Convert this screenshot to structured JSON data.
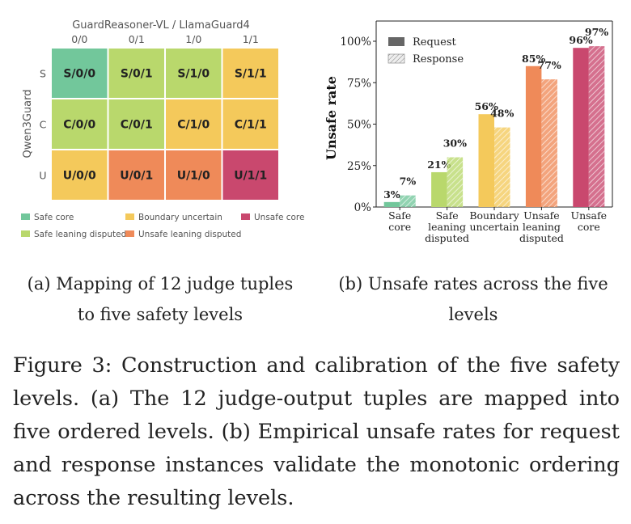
{
  "chart_data": [
    {
      "type": "heatmap",
      "xlabel": "GuardReasoner-VL / LlamaGuard4",
      "ylabel": "Qwen3Guard",
      "columns": [
        "0/0",
        "0/1",
        "1/0",
        "1/1"
      ],
      "rows": [
        "S",
        "C",
        "U"
      ],
      "cells": [
        [
          {
            "label": "S/0/0",
            "level": 0
          },
          {
            "label": "S/0/1",
            "level": 1
          },
          {
            "label": "S/1/0",
            "level": 1
          },
          {
            "label": "S/1/1",
            "level": 2
          }
        ],
        [
          {
            "label": "C/0/0",
            "level": 1
          },
          {
            "label": "C/0/1",
            "level": 1
          },
          {
            "label": "C/1/0",
            "level": 2
          },
          {
            "label": "C/1/1",
            "level": 2
          }
        ],
        [
          {
            "label": "U/0/0",
            "level": 2
          },
          {
            "label": "U/0/1",
            "level": 3
          },
          {
            "label": "U/1/0",
            "level": 3
          },
          {
            "label": "U/1/1",
            "level": 4
          }
        ]
      ],
      "levels": [
        {
          "name": "Safe core",
          "color": "#72c79b"
        },
        {
          "name": "Safe leaning disputed",
          "color": "#b9d86c"
        },
        {
          "name": "Boundary uncertain",
          "color": "#f4c95b"
        },
        {
          "name": "Unsafe leaning disputed",
          "color": "#ef8a59"
        },
        {
          "name": "Unsafe core",
          "color": "#c9486e"
        }
      ]
    },
    {
      "type": "bar",
      "ylabel": "Unsafe rate",
      "ylim": [
        0,
        100
      ],
      "yticks": [
        "0%",
        "25%",
        "50%",
        "75%",
        "100%"
      ],
      "categories": [
        [
          "Safe",
          "core"
        ],
        [
          "Safe",
          "leaning",
          "disputed"
        ],
        [
          "Boundary",
          "uncertain"
        ],
        [
          "Unsafe",
          "leaning",
          "disputed"
        ],
        [
          "Unsafe",
          "core"
        ]
      ],
      "series": [
        {
          "name": "Request",
          "values": [
            3,
            21,
            56,
            85,
            96
          ],
          "labels": [
            "3%",
            "21%",
            "56%",
            "85%",
            "96%"
          ]
        },
        {
          "name": "Response",
          "values": [
            7,
            30,
            48,
            77,
            97
          ],
          "labels": [
            "7%",
            "30%",
            "48%",
            "77%",
            "97%"
          ]
        }
      ],
      "colors": [
        "#72c79b",
        "#b9d86c",
        "#f4c95b",
        "#ef8a59",
        "#c9486e"
      ],
      "legend": "top-left"
    }
  ],
  "captions": {
    "a": [
      "(a) Mapping of 12 judge tuples",
      "to five safety levels"
    ],
    "b": [
      "(b) Unsafe rates across the five",
      "levels"
    ],
    "main": "Figure 3: Construction and calibration of the five safety levels. (a) The 12 judge-output tuples are mapped into five ordered levels. (b) Empirical unsafe rates for request and response instances validate the monotonic ordering across the resulting levels."
  }
}
